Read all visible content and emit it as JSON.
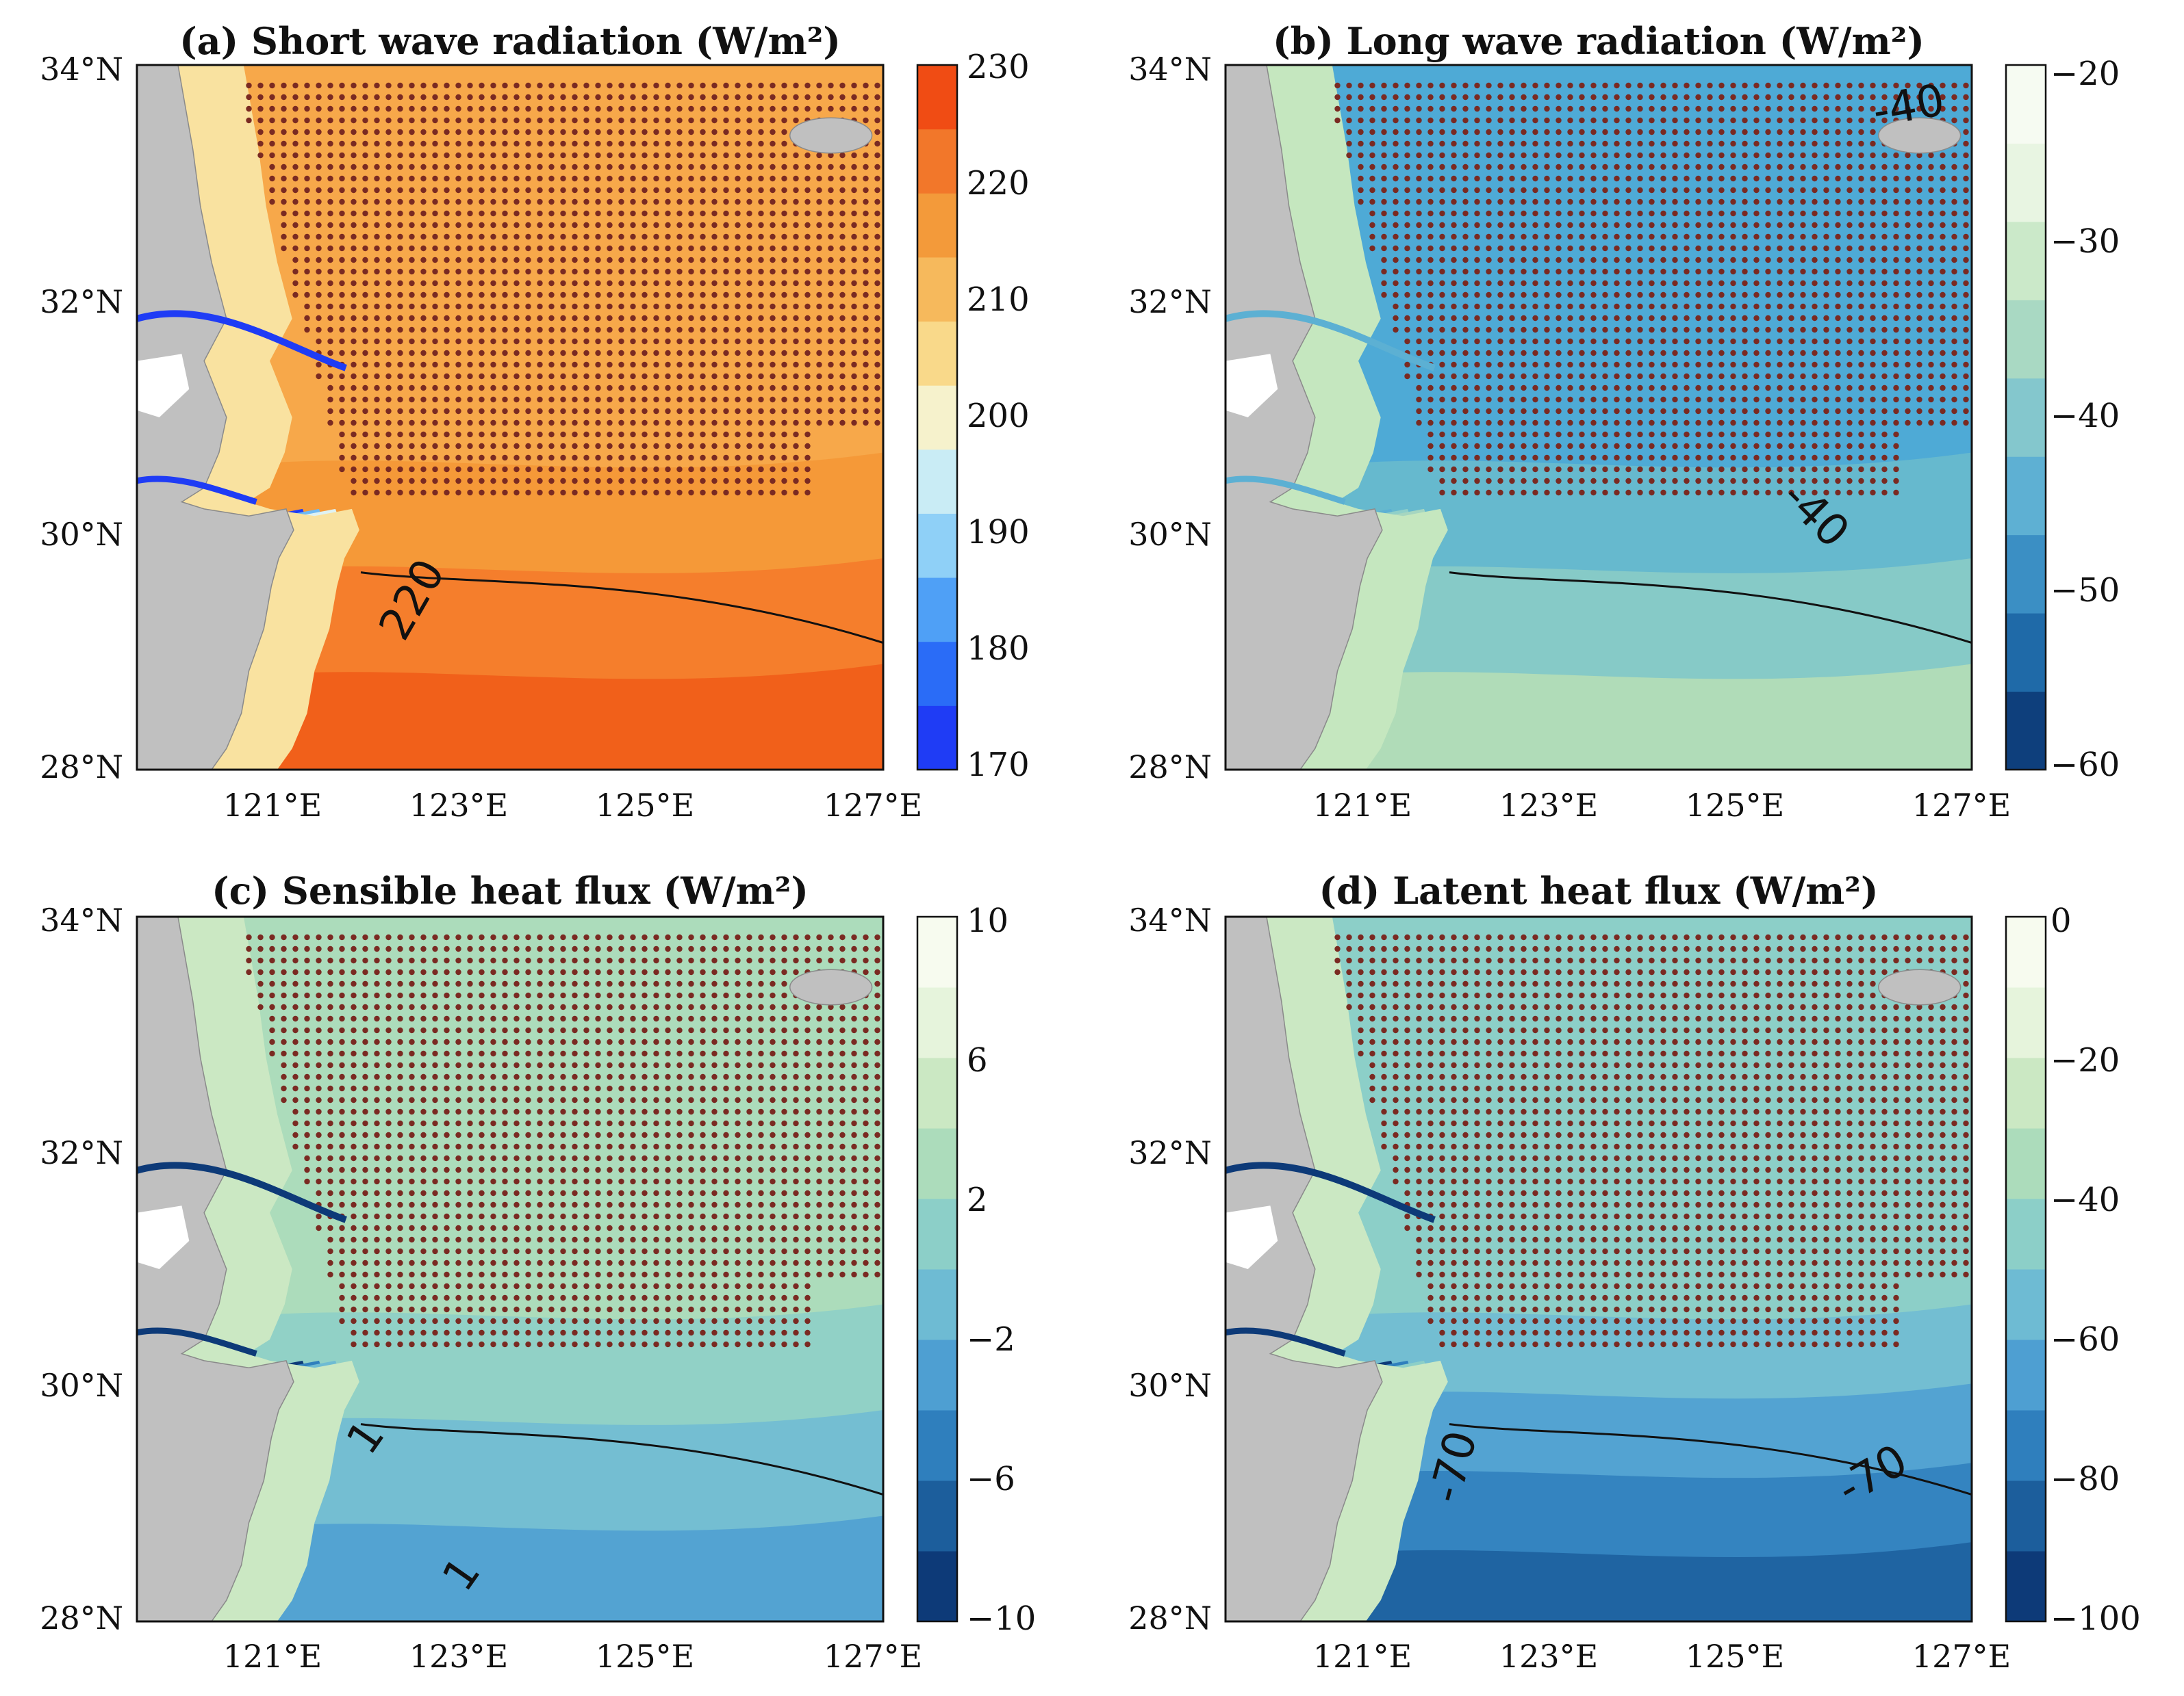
{
  "figure": {
    "panels": [
      {
        "id": "a",
        "title": "(a) Short wave radiation (W/m²)",
        "lat_labels": [
          "34°N",
          "32°N",
          "30°N",
          "28°N"
        ],
        "lon_labels": [
          "121°E",
          "123°E",
          "125°E",
          "127°E"
        ],
        "colorbar": {
          "ticks": [
            "230",
            "220",
            "210",
            "200",
            "190",
            "180",
            "170"
          ],
          "min": 170,
          "max": 230,
          "colors": [
            "#1f3cf5",
            "#2a6cf7",
            "#4fa0f6",
            "#8fd0f7",
            "#c9ecf5",
            "#f6f2cc",
            "#f9d98a",
            "#f6b95c",
            "#f39a3a",
            "#f2772a",
            "#f04c14"
          ]
        },
        "contour_label": "220",
        "water_colors": [
          "#f7a84a",
          "#f59735",
          "#f4792a",
          "#f05a18"
        ],
        "coast_colors": [
          "#1f3cf5",
          "#6fbaf4",
          "#dff2f3",
          "#f9e2a0"
        ]
      },
      {
        "id": "b",
        "title": "(b) Long wave radiation (W/m²)",
        "lat_labels": [
          "34°N",
          "32°N",
          "30°N",
          "28°N"
        ],
        "lon_labels": [
          "121°E",
          "123°E",
          "125°E",
          "127°E"
        ],
        "colorbar": {
          "ticks": [
            "−20",
            "−30",
            "−40",
            "−50",
            "−60"
          ],
          "min": -60,
          "max": -20,
          "colors": [
            "#0e3f7c",
            "#1f6aa8",
            "#3b8fc4",
            "#5eb0d3",
            "#84c7cd",
            "#a9d9c3",
            "#cbe9c9",
            "#e8f5e2",
            "#f6fbf2"
          ]
        },
        "contour_labels": [
          "-40",
          "-40",
          "-40"
        ],
        "water_colors": [
          "#4eaad6",
          "#6bbccd",
          "#8cccc5",
          "#b7dfb5"
        ],
        "coast_colors": [
          "#5cb0d3",
          "#8fcfc8",
          "#a6d6c0",
          "#c5e7bf"
        ]
      },
      {
        "id": "c",
        "title": "(c) Sensible heat flux (W/m²)",
        "lat_labels": [
          "34°N",
          "32°N",
          "30°N",
          "28°N"
        ],
        "lon_labels": [
          "121°E",
          "123°E",
          "125°E",
          "127°E"
        ],
        "colorbar": {
          "ticks": [
            "10",
            "6",
            "2",
            "−2",
            "−6",
            "−10"
          ],
          "min": -10,
          "max": 10,
          "colors": [
            "#0d3a78",
            "#1c5e9c",
            "#2f7fbd",
            "#4e9fd2",
            "#6ebbd3",
            "#8ccfc8",
            "#acdcbb",
            "#cbe8c3",
            "#e6f4dc",
            "#f7fbef"
          ]
        },
        "contour_labels": [
          "1",
          "1"
        ],
        "water_colors": [
          "#acdcbb",
          "#8ccfc8",
          "#6ebbd3",
          "#4e9fd2"
        ],
        "coast_colors": [
          "#0d3a78",
          "#2f7fbd",
          "#6ebbd3",
          "#cbe8c3"
        ]
      },
      {
        "id": "d",
        "title": "(d) Latent heat flux (W/m²)",
        "lat_labels": [
          "34°N",
          "32°N",
          "30°N",
          "28°N"
        ],
        "lon_labels": [
          "121°E",
          "123°E",
          "125°E",
          "127°E"
        ],
        "colorbar": {
          "ticks": [
            "0",
            "−20",
            "−40",
            "−60",
            "−80",
            "−100"
          ],
          "min": -100,
          "max": 0,
          "colors": [
            "#0d3a78",
            "#1c5e9c",
            "#2f7fbd",
            "#4e9fd2",
            "#6ebbd3",
            "#8ccfc8",
            "#acdcbb",
            "#cbe8c3",
            "#e6f4dc",
            "#f7fbef"
          ]
        },
        "contour_labels": [
          "-70",
          "-70"
        ],
        "water_colors": [
          "#8ccfc8",
          "#6ebbd3",
          "#4e9fd2",
          "#2f7fbd",
          "#1c5e9c"
        ],
        "coast_colors": [
          "#0d3a78",
          "#2f7fbd",
          "#8ccfc8",
          "#cbe8c3"
        ]
      }
    ],
    "land_color": "#c0c0c0",
    "dot_color": "#7a2a22"
  }
}
